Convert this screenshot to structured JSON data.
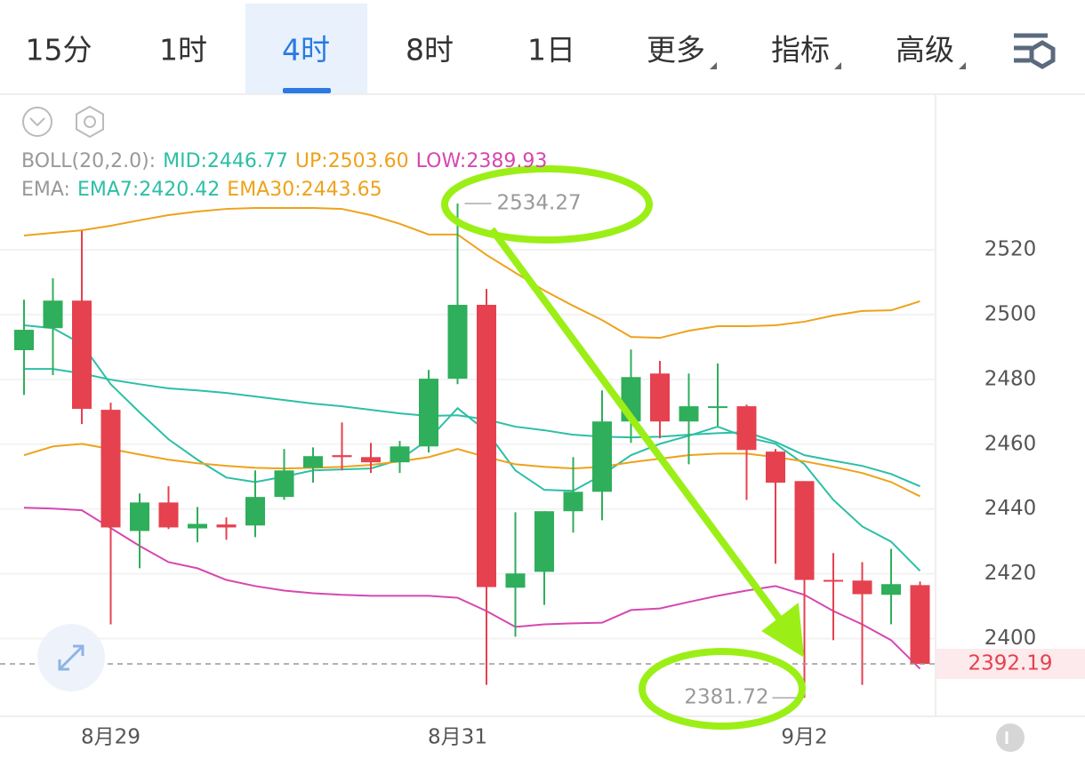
{
  "toolbar": {
    "tabs": [
      "15分",
      "1时",
      "4时",
      "8时",
      "1日",
      "更多",
      "指标",
      "高级"
    ],
    "active": 2
  },
  "chart_data": {
    "type": "candlestick",
    "categories": [
      null,
      null,
      null,
      "8月29",
      null,
      null,
      null,
      null,
      null,
      null,
      null,
      null,
      null,
      null,
      null,
      "8月31",
      null,
      null,
      null,
      null,
      null,
      null,
      null,
      null,
      null,
      null,
      null,
      "9月2",
      null,
      null,
      null,
      null
    ],
    "series": [
      {
        "up_color": "#2fae5b",
        "down_color": "#e5414f",
        "open": [
          2489.0,
          2495.8,
          2504.3,
          2470.6,
          2433.2,
          2442.0,
          2434.0,
          2435.2,
          2434.9,
          2443.7,
          2452.7,
          2456.6,
          2456.0,
          2454.4,
          2459.3,
          2480.2,
          2503.0,
          2415.7,
          2420.6,
          2439.3,
          2445.3,
          2467.0,
          2481.8,
          2467.0,
          2471.4,
          2471.7,
          2457.7,
          2448.6,
          2418.1,
          2417.9,
          2413.5,
          2416.5
        ],
        "high": [
          2504.6,
          2511.2,
          2525.8,
          2472.8,
          2444.8,
          2447.0,
          2440.6,
          2437.4,
          2451.9,
          2458.5,
          2459.0,
          2466.7,
          2460.4,
          2461.0,
          2482.9,
          2534.27,
          2507.9,
          2439.0,
          2439.3,
          2456.0,
          2476.6,
          2489.2,
          2485.7,
          2481.8,
          2484.9,
          2472.2,
          2458.5,
          2448.6,
          2426.4,
          2423.6,
          2427.7,
          2417.6
        ],
        "low": [
          2475.2,
          2481.3,
          2466.2,
          2404.4,
          2421.7,
          2433.8,
          2429.7,
          2430.5,
          2431.3,
          2442.8,
          2448.1,
          2451.9,
          2451.1,
          2451.1,
          2457.4,
          2478.5,
          2385.7,
          2400.6,
          2410.4,
          2432.7,
          2436.5,
          2460.4,
          2461.8,
          2453.8,
          2465.6,
          2442.8,
          2423.1,
          2381.72,
          2399.5,
          2385.7,
          2404.4,
          2392.19
        ],
        "close": [
          2495.3,
          2504.3,
          2470.9,
          2434.3,
          2442.0,
          2434.3,
          2435.4,
          2434.3,
          2443.7,
          2451.9,
          2456.3,
          2456.0,
          2454.4,
          2459.3,
          2480.2,
          2503.0,
          2415.9,
          2420.1,
          2439.3,
          2445.3,
          2467.0,
          2480.7,
          2467.0,
          2471.7,
          2471.7,
          2458.2,
          2448.1,
          2418.1,
          2417.6,
          2413.7,
          2416.8,
          2392.19
        ]
      }
    ],
    "legend": [
      {
        "label": "BOLL(20,2.0):",
        "items": [
          {
            "text": "MID:2446.77",
            "color": "#2cbfa6",
            "values": [
              2483.2,
              2483.2,
              2481.8,
              2479.9,
              2478.5,
              2477.2,
              2476.6,
              2475.8,
              2474.7,
              2473.6,
              2472.5,
              2471.7,
              2470.6,
              2469.5,
              2468.7,
              2468.9,
              2467.6,
              2465.4,
              2464.3,
              2462.9,
              2462.3,
              2462.1,
              2462.3,
              2462.9,
              2463.4,
              2463.7,
              2460.7,
              2456.6,
              2454.9,
              2453.3,
              2450.8,
              2447.0
            ]
          },
          {
            "text": "UP:2503.60",
            "color": "#eea21b",
            "values": [
              2524.4,
              2525.2,
              2526.0,
              2527.4,
              2529.1,
              2530.7,
              2531.8,
              2532.6,
              2532.9,
              2532.9,
              2532.9,
              2532.6,
              2530.7,
              2528.0,
              2524.7,
              2524.7,
              2518.4,
              2512.9,
              2507.4,
              2502.7,
              2498.3,
              2493.1,
              2492.8,
              2495.0,
              2496.4,
              2496.4,
              2496.7,
              2497.8,
              2499.7,
              2501.1,
              2501.3,
              2504.1
            ]
          },
          {
            "text": "LOW:2389.93",
            "color": "#d647b0",
            "values": [
              2440.4,
              2440.1,
              2439.6,
              2434.1,
              2428.6,
              2423.6,
              2421.7,
              2418.1,
              2416.2,
              2414.8,
              2414.0,
              2413.5,
              2413.2,
              2413.2,
              2413.2,
              2412.6,
              2408.5,
              2403.6,
              2404.4,
              2404.7,
              2404.9,
              2408.8,
              2409.3,
              2411.3,
              2413.2,
              2414.8,
              2416.2,
              2413.5,
              2408.5,
              2404.4,
              2399.5,
              2390.7
            ]
          }
        ]
      },
      {
        "label": "EMA:",
        "items": [
          {
            "text": "EMA7:2420.42",
            "color": "#2cbfa6",
            "values": [
              2496.7,
              2495.8,
              2490.9,
              2478.5,
              2469.8,
              2461.5,
              2455.2,
              2449.7,
              2448.3,
              2450.0,
              2451.9,
              2452.2,
              2452.5,
              2455.2,
              2461.5,
              2471.1,
              2464.0,
              2451.9,
              2445.9,
              2445.6,
              2450.5,
              2456.6,
              2460.1,
              2462.6,
              2465.4,
              2462.1,
              2460.1,
              2453.8,
              2442.8,
              2434.6,
              2429.9,
              2420.9
            ]
          },
          {
            "text": "EMA30:2443.65",
            "color": "#eea21b",
            "values": [
              2456.6,
              2459.3,
              2460.1,
              2458.5,
              2456.8,
              2455.2,
              2454.1,
              2453.3,
              2452.7,
              2452.5,
              2452.7,
              2453.0,
              2453.6,
              2454.7,
              2456.0,
              2458.5,
              2456.0,
              2453.8,
              2453.0,
              2452.5,
              2453.0,
              2454.4,
              2455.5,
              2456.6,
              2457.1,
              2457.1,
              2456.0,
              2454.7,
              2453.0,
              2451.1,
              2448.3,
              2443.9
            ]
          }
        ]
      }
    ],
    "ylim": [
      2376,
      2568
    ],
    "yticks": [
      2400,
      2420,
      2440,
      2460,
      2480,
      2500,
      2520
    ],
    "grid": true,
    "max_label": 2534.27,
    "min_label": 2381.72,
    "last_price": 2392.19
  }
}
